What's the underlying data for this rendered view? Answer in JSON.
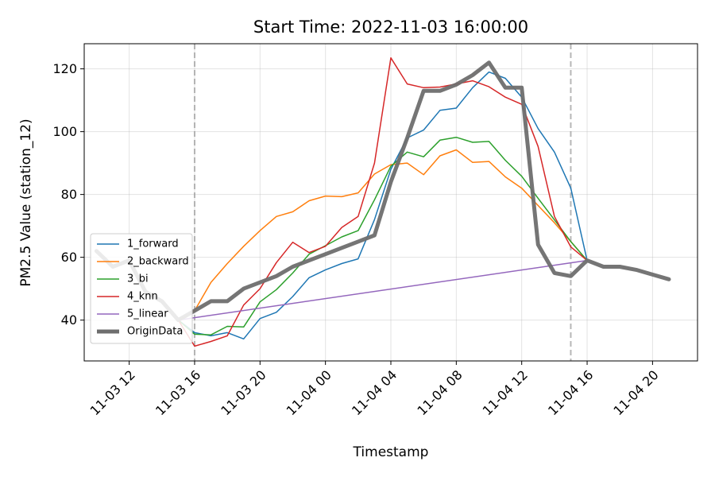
{
  "chart_data": {
    "type": "line",
    "title": "Start Time: 2022-11-03 16:00:00",
    "xlabel": "Timestamp",
    "ylabel": "PM2.5 Value (station_12)",
    "x_tick_labels": [
      "11-03 12",
      "11-03 16",
      "11-03 20",
      "11-04 00",
      "11-04 04",
      "11-04 08",
      "11-04 12",
      "11-04 16",
      "11-04 20"
    ],
    "x_ticks": [
      "2022-11-03 12:00",
      "2022-11-03 16:00",
      "2022-11-03 20:00",
      "2022-11-04 00:00",
      "2022-11-04 04:00",
      "2022-11-04 08:00",
      "2022-11-04 12:00",
      "2022-11-04 16:00",
      "2022-11-04 20:00"
    ],
    "xlim": [
      "2022-11-03 09:15",
      "2022-11-04 22:45"
    ],
    "y_ticks": [
      40,
      60,
      80,
      100,
      120
    ],
    "ylim": [
      27,
      128
    ],
    "grid": true,
    "legend_position": "lower-left",
    "vlines": [
      "2022-11-03 16:00",
      "2022-11-04 15:00"
    ],
    "series": [
      {
        "name": "1_forward",
        "color": "#1f77b4",
        "x": [
          "2022-11-03 15:00",
          "2022-11-03 16:00",
          "2022-11-03 17:00",
          "2022-11-03 18:00",
          "2022-11-03 19:00",
          "2022-11-03 20:00",
          "2022-11-03 21:00",
          "2022-11-03 22:00",
          "2022-11-03 23:00",
          "2022-11-04 00:00",
          "2022-11-04 01:00",
          "2022-11-04 02:00",
          "2022-11-04 03:00",
          "2022-11-04 04:00",
          "2022-11-04 05:00",
          "2022-11-04 06:00",
          "2022-11-04 07:00",
          "2022-11-04 08:00",
          "2022-11-04 09:00",
          "2022-11-04 10:00",
          "2022-11-04 11:00",
          "2022-11-04 12:00",
          "2022-11-04 13:00",
          "2022-11-04 14:00",
          "2022-11-04 15:00",
          "2022-11-04 16:00"
        ],
        "y": [
          40,
          36,
          35,
          36,
          34,
          40.5,
          42.5,
          47.5,
          53.5,
          56,
          58,
          59.5,
          72,
          88,
          98,
          100.5,
          106.8,
          107.5,
          114,
          119,
          117,
          111,
          101,
          93.5,
          82,
          59
        ]
      },
      {
        "name": "2_backward",
        "color": "#ff7f0e",
        "x": [
          "2022-11-03 15:00",
          "2022-11-03 16:00",
          "2022-11-03 17:00",
          "2022-11-03 18:00",
          "2022-11-03 19:00",
          "2022-11-03 20:00",
          "2022-11-03 21:00",
          "2022-11-03 22:00",
          "2022-11-03 23:00",
          "2022-11-04 00:00",
          "2022-11-04 01:00",
          "2022-11-04 02:00",
          "2022-11-04 03:00",
          "2022-11-04 04:00",
          "2022-11-04 05:00",
          "2022-11-04 06:00",
          "2022-11-04 07:00",
          "2022-11-04 08:00",
          "2022-11-04 09:00",
          "2022-11-04 10:00",
          "2022-11-04 11:00",
          "2022-11-04 12:00",
          "2022-11-04 13:00",
          "2022-11-04 14:00",
          "2022-11-04 15:00",
          "2022-11-04 16:00"
        ],
        "y": [
          40,
          43,
          52,
          58,
          63.5,
          68.5,
          73,
          74.5,
          78,
          79.5,
          79.3,
          80.5,
          86.5,
          89.5,
          90,
          86.3,
          92.3,
          94.2,
          90.2,
          90.5,
          85.6,
          82,
          76.5,
          71,
          65,
          59
        ]
      },
      {
        "name": "3_bi",
        "color": "#2ca02c",
        "x": [
          "2022-11-03 15:00",
          "2022-11-03 16:00",
          "2022-11-03 17:00",
          "2022-11-03 18:00",
          "2022-11-03 19:00",
          "2022-11-03 20:00",
          "2022-11-03 21:00",
          "2022-11-03 22:00",
          "2022-11-03 23:00",
          "2022-11-04 00:00",
          "2022-11-04 01:00",
          "2022-11-04 02:00",
          "2022-11-04 03:00",
          "2022-11-04 04:00",
          "2022-11-04 05:00",
          "2022-11-04 06:00",
          "2022-11-04 07:00",
          "2022-11-04 08:00",
          "2022-11-04 09:00",
          "2022-11-04 10:00",
          "2022-11-04 11:00",
          "2022-11-04 12:00",
          "2022-11-04 13:00",
          "2022-11-04 14:00",
          "2022-11-04 15:00",
          "2022-11-04 16:00"
        ],
        "y": [
          40,
          35.5,
          35.3,
          38,
          37.8,
          45.8,
          49.7,
          55,
          61,
          63.7,
          66.5,
          68.5,
          78.3,
          89,
          93.5,
          92,
          97.3,
          98.2,
          96.6,
          96.9,
          90.9,
          85.8,
          78.8,
          71.9,
          65,
          59
        ]
      },
      {
        "name": "4_knn",
        "color": "#d62728",
        "x": [
          "2022-11-03 15:00",
          "2022-11-03 16:00",
          "2022-11-03 17:00",
          "2022-11-03 18:00",
          "2022-11-03 19:00",
          "2022-11-03 20:00",
          "2022-11-03 21:00",
          "2022-11-03 22:00",
          "2022-11-03 23:00",
          "2022-11-04 00:00",
          "2022-11-04 01:00",
          "2022-11-04 02:00",
          "2022-11-04 03:00",
          "2022-11-04 04:00",
          "2022-11-04 05:00",
          "2022-11-04 06:00",
          "2022-11-04 07:00",
          "2022-11-04 08:00",
          "2022-11-04 09:00",
          "2022-11-04 10:00",
          "2022-11-04 11:00",
          "2022-11-04 12:00",
          "2022-11-04 13:00",
          "2022-11-04 14:00",
          "2022-11-04 15:00",
          "2022-11-04 16:00"
        ],
        "y": [
          40,
          31.7,
          33.2,
          35,
          44.8,
          50,
          58.3,
          64.8,
          61.5,
          63.5,
          69.5,
          73,
          90,
          123.5,
          115.2,
          114,
          114.2,
          115.2,
          116.2,
          114.3,
          111,
          108.7,
          95.3,
          73,
          63.3,
          59
        ]
      },
      {
        "name": "5_linear",
        "color": "#9467bd",
        "x": [
          "2022-11-03 15:00",
          "2022-11-04 16:00"
        ],
        "y": [
          40,
          59
        ]
      },
      {
        "name": "OriginData",
        "color": "#6e6e6e",
        "x": [
          "2022-11-03 10:00",
          "2022-11-03 11:00",
          "2022-11-03 12:00",
          "2022-11-03 13:00",
          "2022-11-03 14:00",
          "2022-11-03 15:00",
          "2022-11-03 16:00",
          "2022-11-03 17:00",
          "2022-11-03 18:00",
          "2022-11-03 19:00",
          "2022-11-03 20:00",
          "2022-11-03 21:00",
          "2022-11-03 22:00",
          "2022-11-03 23:00",
          "2022-11-04 00:00",
          "2022-11-04 01:00",
          "2022-11-04 02:00",
          "2022-11-04 03:00",
          "2022-11-04 04:00",
          "2022-11-04 05:00",
          "2022-11-04 06:00",
          "2022-11-04 07:00",
          "2022-11-04 08:00",
          "2022-11-04 09:00",
          "2022-11-04 10:00",
          "2022-11-04 11:00",
          "2022-11-04 12:00",
          "2022-11-04 13:00",
          "2022-11-04 14:00",
          "2022-11-04 15:00",
          "2022-11-04 16:00",
          "2022-11-04 17:00",
          "2022-11-04 18:00",
          "2022-11-04 19:00",
          "2022-11-04 20:00",
          "2022-11-04 21:00"
        ],
        "y": [
          62,
          57,
          59,
          49,
          46,
          40,
          43,
          46,
          46,
          50,
          52,
          54,
          57,
          59,
          61,
          63,
          65,
          67,
          84,
          98,
          113,
          113,
          115,
          118,
          122,
          114,
          114,
          64,
          55,
          54,
          59,
          57,
          57,
          56,
          54.5,
          53
        ]
      }
    ]
  }
}
